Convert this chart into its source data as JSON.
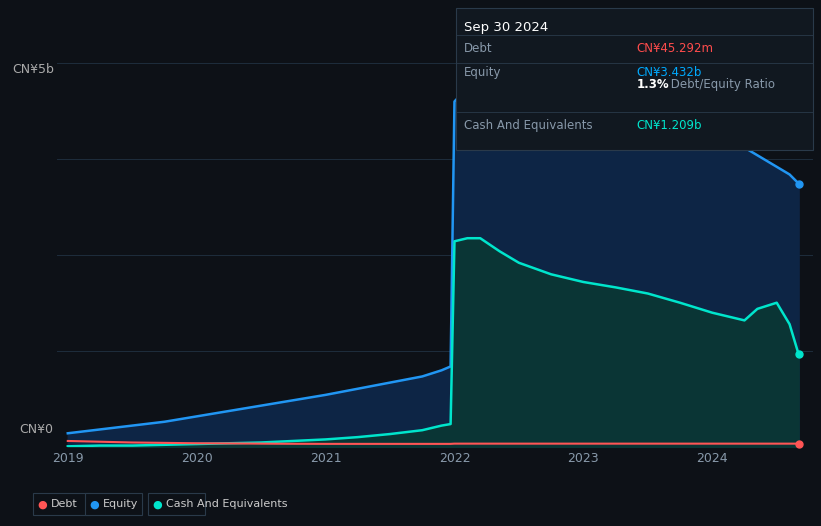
{
  "background_color": "#0d1117",
  "plot_bg_color": "#0d1117",
  "grid_color": "#1e2d3d",
  "title_box": {
    "date": "Sep 30 2024",
    "debt_label": "Debt",
    "debt_value": "CN¥45.292m",
    "debt_color": "#ff4c4c",
    "equity_label": "Equity",
    "equity_value": "CN¥3.432b",
    "equity_color": "#00aaff",
    "ratio_value": "1.3%",
    "ratio_text": " Debt/Equity Ratio",
    "cash_label": "Cash And Equivalents",
    "cash_value": "CN¥1.209b",
    "cash_color": "#00e5cc"
  },
  "ylabel_top": "CN¥5b",
  "ylabel_bottom": "CN¥0",
  "x_ticks": [
    2019,
    2020,
    2021,
    2022,
    2023,
    2024
  ],
  "equity_color": "#2196f3",
  "equity_fill_color": "#0d2545",
  "cash_color": "#00e5cc",
  "cash_fill_color": "#0a3535",
  "debt_color": "#ff5555",
  "time": [
    2019.0,
    2019.25,
    2019.5,
    2019.75,
    2020.0,
    2020.25,
    2020.5,
    2020.75,
    2021.0,
    2021.25,
    2021.5,
    2021.75,
    2021.9,
    2021.97,
    2022.0,
    2022.1,
    2022.2,
    2022.35,
    2022.5,
    2022.75,
    2023.0,
    2023.25,
    2023.5,
    2023.75,
    2024.0,
    2024.25,
    2024.35,
    2024.5,
    2024.6,
    2024.67
  ],
  "equity": [
    0.18,
    0.23,
    0.28,
    0.33,
    0.4,
    0.47,
    0.54,
    0.61,
    0.68,
    0.76,
    0.84,
    0.92,
    1.0,
    1.05,
    4.5,
    4.68,
    4.8,
    4.82,
    4.78,
    4.7,
    4.6,
    4.48,
    4.38,
    4.22,
    4.05,
    3.9,
    3.8,
    3.65,
    3.55,
    3.432
  ],
  "cash": [
    0.01,
    0.02,
    0.02,
    0.03,
    0.04,
    0.05,
    0.06,
    0.08,
    0.1,
    0.13,
    0.17,
    0.22,
    0.28,
    0.3,
    2.68,
    2.72,
    2.72,
    2.55,
    2.4,
    2.25,
    2.15,
    2.08,
    2.0,
    1.88,
    1.75,
    1.65,
    1.8,
    1.88,
    1.6,
    1.209
  ],
  "debt": [
    0.08,
    0.07,
    0.06,
    0.055,
    0.05,
    0.048,
    0.045,
    0.043,
    0.042,
    0.042,
    0.042,
    0.042,
    0.042,
    0.042,
    0.045,
    0.045,
    0.045,
    0.045,
    0.045,
    0.045,
    0.045,
    0.045,
    0.045,
    0.045,
    0.045,
    0.045,
    0.045,
    0.045,
    0.045,
    0.045
  ],
  "ylim": [
    0,
    5.0
  ],
  "yticks": [
    0,
    1.25,
    2.5,
    3.75,
    5.0
  ],
  "xlim": [
    2018.92,
    2024.78
  ],
  "legend_items": [
    {
      "label": "Debt",
      "color": "#ff5555"
    },
    {
      "label": "Equity",
      "color": "#2196f3"
    },
    {
      "label": "Cash And Equivalents",
      "color": "#00e5cc"
    }
  ]
}
